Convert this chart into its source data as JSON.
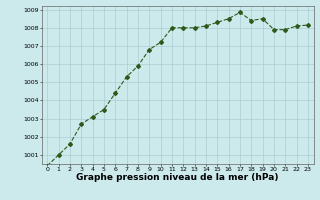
{
  "x": [
    0,
    1,
    2,
    3,
    4,
    5,
    6,
    7,
    8,
    9,
    10,
    11,
    12,
    13,
    14,
    15,
    16,
    17,
    18,
    19,
    20,
    21,
    22,
    23
  ],
  "y": [
    1000.4,
    1001.0,
    1001.6,
    1002.7,
    1003.1,
    1003.5,
    1004.4,
    1005.3,
    1005.9,
    1006.8,
    1007.2,
    1008.0,
    1008.0,
    1008.0,
    1008.1,
    1008.3,
    1008.5,
    1008.85,
    1008.4,
    1008.5,
    1007.9,
    1007.9,
    1008.1,
    1008.15
  ],
  "line_color": "#2d5a1b",
  "marker": "D",
  "markersize": 2.0,
  "linewidth": 0.8,
  "linestyle": "--",
  "bg_color": "#cce9ec",
  "grid_color": "#aacdd2",
  "xlabel": "Graphe pression niveau de la mer (hPa)",
  "xlabel_fontsize": 6.5,
  "ylim": [
    1000.5,
    1009.2
  ],
  "xlim": [
    -0.5,
    23.5
  ],
  "yticks": [
    1001,
    1002,
    1003,
    1004,
    1005,
    1006,
    1007,
    1008,
    1009
  ],
  "xticks": [
    0,
    1,
    2,
    3,
    4,
    5,
    6,
    7,
    8,
    9,
    10,
    11,
    12,
    13,
    14,
    15,
    16,
    17,
    18,
    19,
    20,
    21,
    22,
    23
  ],
  "tick_fontsize": 4.5,
  "spine_color": "#666666"
}
